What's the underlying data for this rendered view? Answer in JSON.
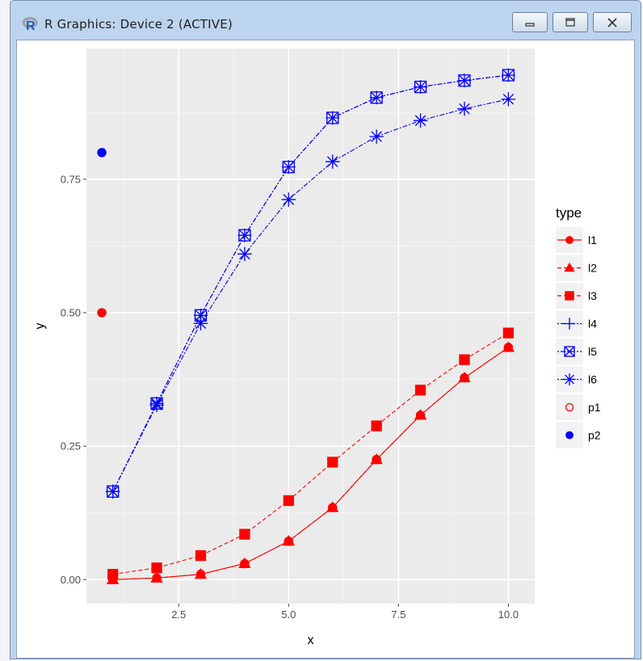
{
  "window": {
    "title": "R Graphics: Device 2 (ACTIVE)",
    "app_icon": "R",
    "buttons": {
      "minimize": "minimize-icon",
      "maximize": "maximize-icon",
      "close": "close-icon"
    }
  },
  "chart_data": {
    "type": "line",
    "xlabel": "x",
    "ylabel": "y",
    "xlim": [
      0.4,
      10.6
    ],
    "ylim": [
      -0.045,
      0.995
    ],
    "xticks": [
      "2.5",
      "5.0",
      "7.5",
      "10.0"
    ],
    "xtick_values": [
      2.5,
      5.0,
      7.5,
      10.0
    ],
    "yticks": [
      "0.00",
      "0.25",
      "0.50",
      "0.75"
    ],
    "ytick_values": [
      0.0,
      0.25,
      0.5,
      0.75
    ],
    "legend": {
      "title": "type",
      "placement": "right"
    },
    "colors": {
      "red": "#ff0000",
      "blue": "#0000ff",
      "panel": "#ebebeb",
      "grid": "#ffffff"
    },
    "x": [
      1,
      2,
      3,
      4,
      5,
      6,
      7,
      8,
      9,
      10
    ],
    "series": [
      {
        "name": "l1",
        "color": "#ff0000",
        "line": "solid",
        "marker": "circle",
        "values": [
          0.0,
          0.003,
          0.01,
          0.03,
          0.072,
          0.135,
          0.225,
          0.308,
          0.378,
          0.435
        ]
      },
      {
        "name": "l2",
        "color": "#ff0000",
        "line": "dashed",
        "marker": "triangle",
        "values": [
          0.0,
          0.003,
          0.01,
          0.03,
          0.072,
          0.135,
          0.225,
          0.308,
          0.378,
          0.435
        ]
      },
      {
        "name": "l3",
        "color": "#ff0000",
        "line": "dashed",
        "marker": "square",
        "values": [
          0.01,
          0.022,
          0.045,
          0.085,
          0.148,
          0.22,
          0.288,
          0.355,
          0.412,
          0.462
        ]
      },
      {
        "name": "l4",
        "color": "#0000ff",
        "line": "dotdash",
        "marker": "plus",
        "values": [
          0.165,
          0.33,
          0.495,
          0.645,
          0.773,
          0.865,
          0.903,
          0.923,
          0.935,
          0.945
        ]
      },
      {
        "name": "l5",
        "color": "#0000ff",
        "line": "dotdash",
        "marker": "boxx",
        "values": [
          0.165,
          0.33,
          0.495,
          0.645,
          0.773,
          0.865,
          0.903,
          0.923,
          0.935,
          0.945
        ]
      },
      {
        "name": "l6",
        "color": "#0000ff",
        "line": "dotdash",
        "marker": "asterisk",
        "values": [
          0.165,
          0.327,
          0.48,
          0.61,
          0.712,
          0.783,
          0.83,
          0.86,
          0.882,
          0.9
        ]
      }
    ],
    "points": [
      {
        "name": "p1",
        "color": "#ff0000",
        "marker": "circle",
        "x": 0.75,
        "y": 0.5
      },
      {
        "name": "p2",
        "color": "#0000ff",
        "marker": "circle",
        "x": 0.75,
        "y": 0.8
      }
    ]
  }
}
